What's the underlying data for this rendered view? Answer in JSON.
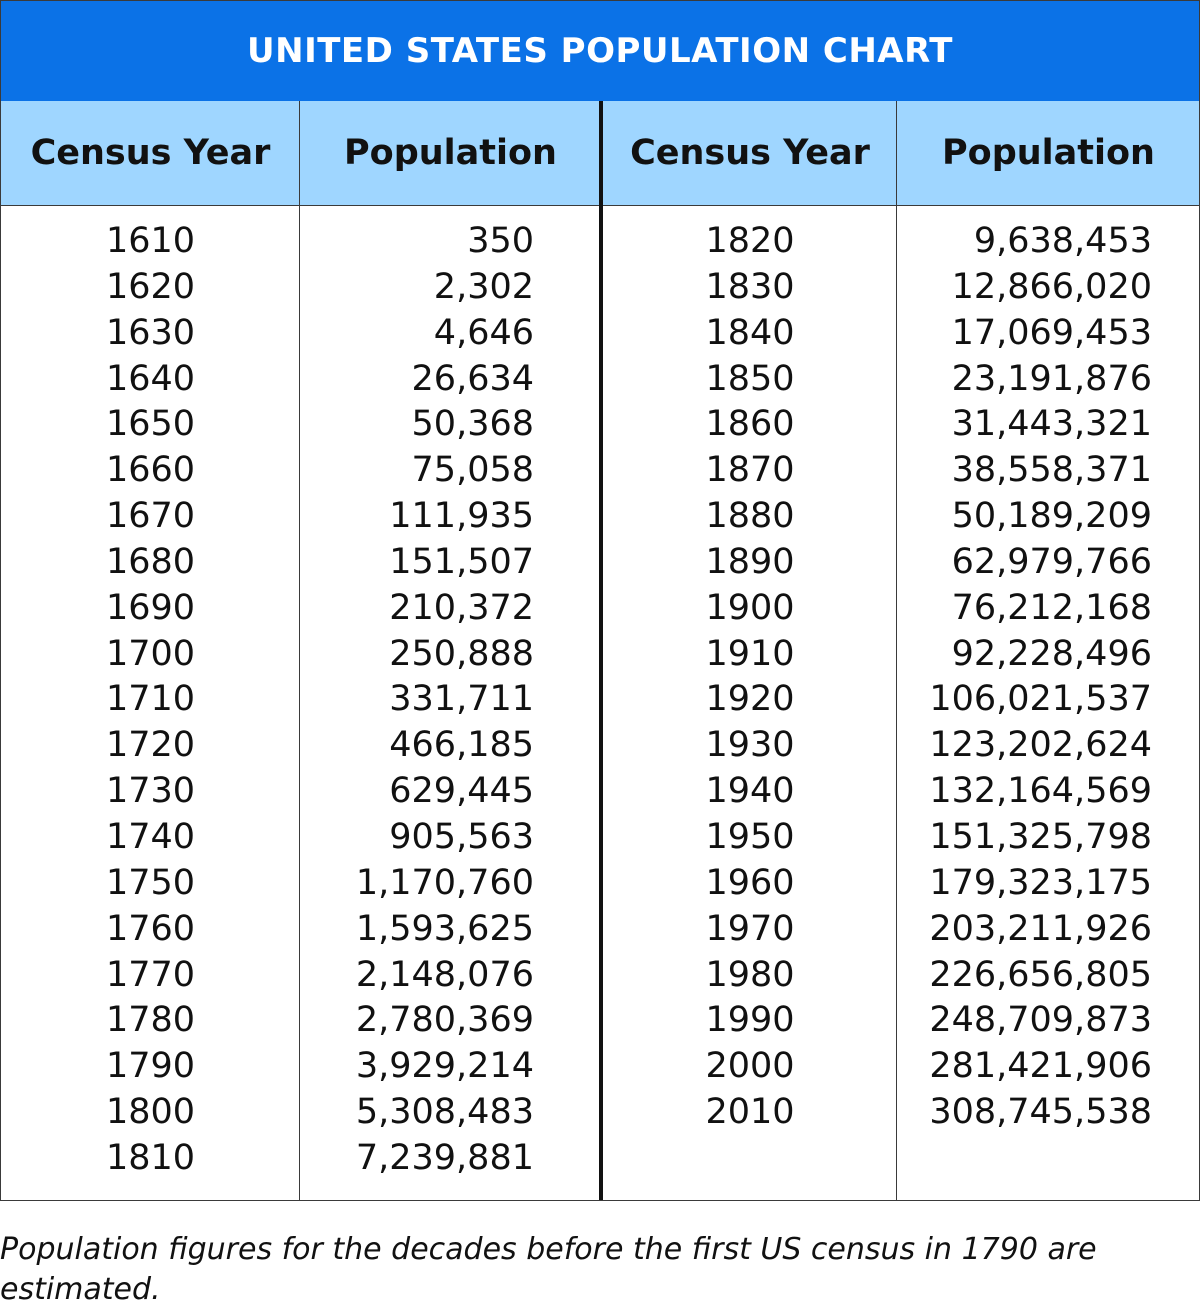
{
  "chart_data": {
    "type": "table",
    "title": "UNITED STATES POPULATION CHART",
    "columns": [
      "Census Year",
      "Population",
      "Census Year",
      "Population"
    ],
    "left_rows": [
      {
        "year": "1610",
        "population": "350"
      },
      {
        "year": "1620",
        "population": "2,302"
      },
      {
        "year": "1630",
        "population": "4,646"
      },
      {
        "year": "1640",
        "population": "26,634"
      },
      {
        "year": "1650",
        "population": "50,368"
      },
      {
        "year": "1660",
        "population": "75,058"
      },
      {
        "year": "1670",
        "population": "111,935"
      },
      {
        "year": "1680",
        "population": "151,507"
      },
      {
        "year": "1690",
        "population": "210,372"
      },
      {
        "year": "1700",
        "population": "250,888"
      },
      {
        "year": "1710",
        "population": "331,711"
      },
      {
        "year": "1720",
        "population": "466,185"
      },
      {
        "year": "1730",
        "population": "629,445"
      },
      {
        "year": "1740",
        "population": "905,563"
      },
      {
        "year": "1750",
        "population": "1,170,760"
      },
      {
        "year": "1760",
        "population": "1,593,625"
      },
      {
        "year": "1770",
        "population": "2,148,076"
      },
      {
        "year": "1780",
        "population": "2,780,369"
      },
      {
        "year": "1790",
        "population": "3,929,214"
      },
      {
        "year": "1800",
        "population": "5,308,483"
      },
      {
        "year": "1810",
        "population": "7,239,881"
      }
    ],
    "right_rows": [
      {
        "year": "1820",
        "population": "9,638,453"
      },
      {
        "year": "1830",
        "population": "12,866,020"
      },
      {
        "year": "1840",
        "population": "17,069,453"
      },
      {
        "year": "1850",
        "population": "23,191,876"
      },
      {
        "year": "1860",
        "population": "31,443,321"
      },
      {
        "year": "1870",
        "population": "38,558,371"
      },
      {
        "year": "1880",
        "population": "50,189,209"
      },
      {
        "year": "1890",
        "population": "62,979,766"
      },
      {
        "year": "1900",
        "population": "76,212,168"
      },
      {
        "year": "1910",
        "population": "92,228,496"
      },
      {
        "year": "1920",
        "population": "106,021,537"
      },
      {
        "year": "1930",
        "population": "123,202,624"
      },
      {
        "year": "1940",
        "population": "132,164,569"
      },
      {
        "year": "1950",
        "population": "151,325,798"
      },
      {
        "year": "1960",
        "population": "179,323,175"
      },
      {
        "year": "1970",
        "population": "203,211,926"
      },
      {
        "year": "1980",
        "population": "226,656,805"
      },
      {
        "year": "1990",
        "population": "248,709,873"
      },
      {
        "year": "2000",
        "population": "281,421,906"
      },
      {
        "year": "2010",
        "population": "308,745,538"
      }
    ],
    "footnote": "Population figures for the decades before the first US census in 1790 are estimated."
  },
  "colors": {
    "title_bar": "#0b72e7",
    "header_row": "#9fd6ff",
    "title_text": "#ffffff"
  }
}
